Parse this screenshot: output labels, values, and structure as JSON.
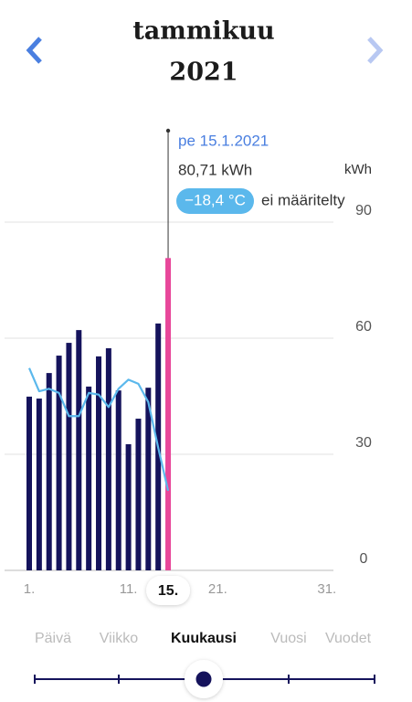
{
  "header": {
    "title": "tammikuu",
    "subtitle": "2021"
  },
  "chart_data": {
    "type": "bar",
    "categories": [
      "1.",
      null,
      null,
      null,
      null,
      null,
      null,
      null,
      null,
      null,
      "11.",
      null,
      null,
      null,
      "15.",
      null,
      null,
      null,
      null,
      "21.",
      null,
      null,
      null,
      null,
      null,
      null,
      null,
      null,
      null,
      null,
      "31."
    ],
    "series": [
      {
        "type": "bar",
        "color": "#15135c",
        "selected_color": "#e8479a",
        "values": [
          44.9,
          44.4,
          51,
          55.5,
          58.8,
          62.1,
          47.5,
          55.3,
          57.4,
          46.5,
          32.6,
          39.2,
          47.2,
          63.8,
          80.71,
          null,
          null,
          null,
          null,
          null,
          null,
          null,
          null,
          null,
          null,
          null,
          null,
          null,
          null,
          null,
          null
        ]
      },
      {
        "type": "line",
        "axis": "y2",
        "color": "#5bb8ec",
        "values": [
          -3.6,
          -6.4,
          -6.1,
          -6.6,
          -9.4,
          -9.4,
          -6.6,
          -6.8,
          -8.3,
          -6.1,
          -5.0,
          -5.5,
          -7.7,
          -13.2,
          -18.4,
          null,
          null,
          null,
          null,
          null,
          null,
          null,
          null,
          null,
          null,
          null,
          null,
          null,
          null,
          null,
          null
        ]
      }
    ],
    "selected": 14,
    "y_unit": "kWh",
    "ylim": [
      0,
      90
    ],
    "yticks": [
      0,
      30,
      60,
      90
    ],
    "y2lim": [
      -28,
      14
    ],
    "grid": true,
    "tooltip": {
      "date": "pe 15.1.2021",
      "value": "80,71 kWh",
      "temperature": "−18,4 °C",
      "note": "ei määritelty"
    }
  },
  "tabs": [
    "Päivä",
    "Viikko",
    "Kuukausi",
    "Vuosi",
    "Vuodet"
  ],
  "active_tab": 2
}
